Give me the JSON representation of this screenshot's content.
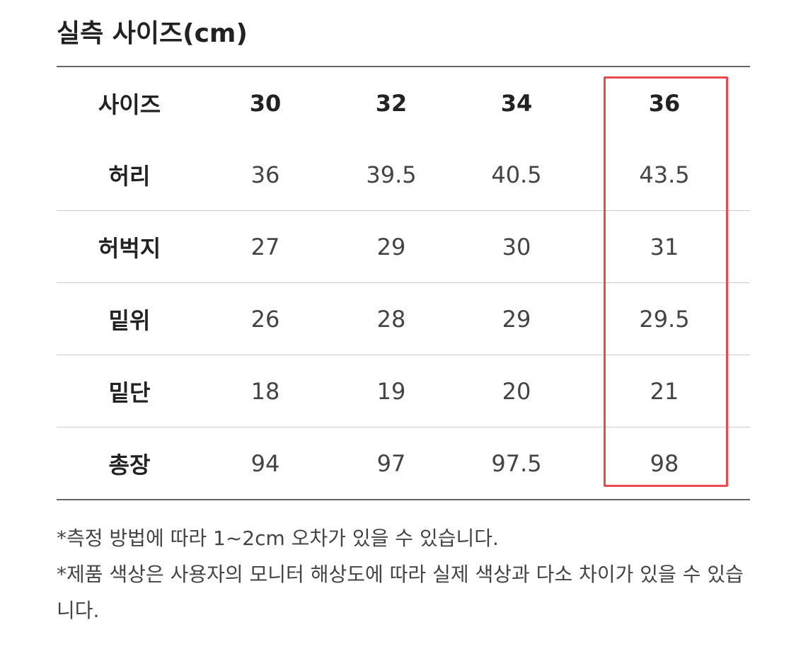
{
  "title": "실측 사이즈(cm)",
  "table": {
    "header": [
      "사이즈",
      "30",
      "32",
      "34",
      "36"
    ],
    "rows": [
      [
        "허리",
        "36",
        "39.5",
        "40.5",
        "43.5"
      ],
      [
        "허벅지",
        "27",
        "29",
        "30",
        "31"
      ],
      [
        "밑위",
        "26",
        "28",
        "29",
        "29.5"
      ],
      [
        "밑단",
        "18",
        "19",
        "20",
        "21"
      ],
      [
        "총장",
        "94",
        "97",
        "97.5",
        "98"
      ]
    ],
    "highlighted_column": "36",
    "highlight_color": "#e94a52"
  },
  "notes": [
    "*측정 방법에 따라 1~2cm 오차가 있을 수 있습니다.",
    "*제품 색상은 사용자의 모니터 해상도에 따라 실제 색상과 다소 차이가 있을 수 있습니다."
  ]
}
